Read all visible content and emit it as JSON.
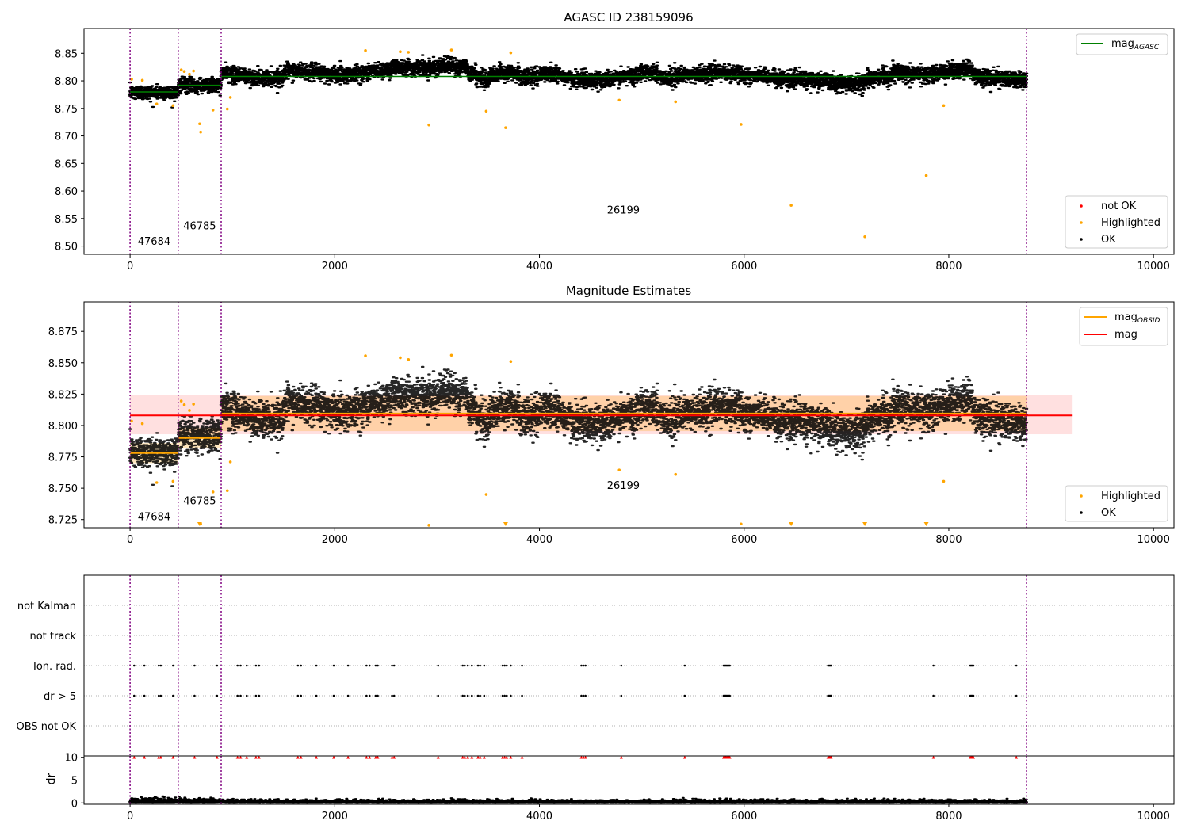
{
  "chart_data": [
    {
      "type": "scatter",
      "title": "AGASC ID 238159096",
      "xlim": [
        -450,
        10200
      ],
      "ylim": [
        8.485,
        8.895
      ],
      "x_ticks": [
        0,
        2000,
        4000,
        6000,
        8000,
        10000
      ],
      "y_ticks": [
        8.5,
        8.55,
        8.6,
        8.65,
        8.7,
        8.75,
        8.8,
        8.85
      ],
      "y_tick_labels": [
        "8.50",
        "8.55",
        "8.60",
        "8.65",
        "8.70",
        "8.75",
        "8.80",
        "8.85"
      ],
      "x_tick_labels": [
        "0",
        "2000",
        "4000",
        "6000",
        "8000",
        "10000"
      ],
      "obsid_boundaries": [
        0,
        470,
        890,
        8760
      ],
      "obsid_labels": [
        {
          "text": "47684",
          "x": 235,
          "y": 8.502
        },
        {
          "text": "46785",
          "x": 680,
          "y": 8.53
        },
        {
          "text": "26199",
          "x": 4820,
          "y": 8.559
        }
      ],
      "legend_top": [
        {
          "name": "mag_AGASC",
          "label": "mag",
          "sub": "AGASC",
          "color": "#008000"
        }
      ],
      "legend_bottom": [
        {
          "name": "not OK",
          "color": "#ff0000"
        },
        {
          "name": "Highlighted",
          "color": "#ffa500"
        },
        {
          "name": "OK",
          "color": "#000000"
        }
      ],
      "ok_level_segments": [
        {
          "x0": 0,
          "x1": 470,
          "y": 8.78
        },
        {
          "x0": 470,
          "x1": 890,
          "y": 8.792
        },
        {
          "x0": 890,
          "x1": 8760,
          "y": 8.808
        }
      ],
      "highlighted_points": [
        [
          15,
          8.803
        ],
        [
          120,
          8.801
        ],
        [
          260,
          8.758
        ],
        [
          420,
          8.755
        ],
        [
          500,
          8.82
        ],
        [
          530,
          8.817
        ],
        [
          580,
          8.812
        ],
        [
          620,
          8.818
        ],
        [
          680,
          8.722
        ],
        [
          690,
          8.707
        ],
        [
          810,
          8.747
        ],
        [
          950,
          8.749
        ],
        [
          980,
          8.77
        ],
        [
          2300,
          8.855
        ],
        [
          2640,
          8.853
        ],
        [
          2720,
          8.852
        ],
        [
          2920,
          8.72
        ],
        [
          3140,
          8.856
        ],
        [
          3480,
          8.745
        ],
        [
          3670,
          8.715
        ],
        [
          3720,
          8.851
        ],
        [
          4780,
          8.765
        ],
        [
          5330,
          8.762
        ],
        [
          5970,
          8.721
        ],
        [
          6460,
          8.574
        ],
        [
          7180,
          8.517
        ],
        [
          7780,
          8.628
        ],
        [
          7950,
          8.755
        ]
      ]
    },
    {
      "type": "scatter",
      "title": "Magnitude Estimates",
      "xlim": [
        -450,
        10200
      ],
      "ylim": [
        8.7185,
        8.8985
      ],
      "x_ticks": [
        0,
        2000,
        4000,
        6000,
        8000,
        10000
      ],
      "x_tick_labels": [
        "0",
        "2000",
        "4000",
        "6000",
        "8000",
        "10000"
      ],
      "y_ticks": [
        8.725,
        8.75,
        8.775,
        8.8,
        8.825,
        8.85,
        8.875
      ],
      "y_tick_labels": [
        "8.725",
        "8.750",
        "8.775",
        "8.800",
        "8.825",
        "8.850",
        "8.875"
      ],
      "obsid_boundaries": [
        0,
        470,
        890,
        8760
      ],
      "obsid_labels": [
        {
          "text": "47684",
          "x": 235,
          "y": 8.7245
        },
        {
          "text": "46785",
          "x": 680,
          "y": 8.737
        },
        {
          "text": "26199",
          "x": 4820,
          "y": 8.7495
        }
      ],
      "mag": 8.808,
      "mag_band": [
        8.793,
        8.824
      ],
      "mag_band_xrange": [
        0,
        9210
      ],
      "mag_obsid": [
        {
          "x0": 0,
          "x1": 470,
          "y": 8.778,
          "band": [
            8.77,
            8.786
          ]
        },
        {
          "x0": 470,
          "x1": 890,
          "y": 8.79,
          "band": [
            8.782,
            8.798
          ]
        },
        {
          "x0": 890,
          "x1": 8760,
          "y": 8.8095,
          "band": [
            8.7955,
            8.8235
          ]
        }
      ],
      "legend_top": [
        {
          "name": "mag_OBSID",
          "label": "mag",
          "sub": "OBSID",
          "color": "#ffa500"
        },
        {
          "name": "mag",
          "label": "mag",
          "sub": "",
          "color": "#ff0000"
        }
      ],
      "legend_bottom": [
        {
          "name": "Highlighted",
          "color": "#ffa500"
        },
        {
          "name": "OK",
          "color": "#000000"
        }
      ],
      "highlighted_points": [
        [
          15,
          8.8035
        ],
        [
          120,
          8.8015
        ],
        [
          260,
          8.7545
        ],
        [
          420,
          8.7555
        ],
        [
          500,
          8.8195
        ],
        [
          530,
          8.8165
        ],
        [
          580,
          8.812
        ],
        [
          620,
          8.817
        ],
        [
          690,
          8.7215
        ],
        [
          810,
          8.747
        ],
        [
          950,
          8.748
        ],
        [
          980,
          8.771
        ],
        [
          2300,
          8.8555
        ],
        [
          2640,
          8.854
        ],
        [
          2720,
          8.8525
        ],
        [
          2920,
          8.7205
        ],
        [
          3140,
          8.856
        ],
        [
          3480,
          8.745
        ],
        [
          3720,
          8.851
        ],
        [
          4780,
          8.7645
        ],
        [
          5330,
          8.761
        ],
        [
          5970,
          8.7215
        ],
        [
          7950,
          8.7555
        ]
      ],
      "off_scale_markers": [
        680,
        3670,
        6460,
        7180,
        7780
      ]
    },
    {
      "type": "scatter",
      "title": "",
      "xlim": [
        -450,
        10200
      ],
      "categories": [
        "not Kalman",
        "not track",
        "Ion. rad.",
        "dr > 5",
        "OBS not OK"
      ],
      "obsid_boundaries": [
        0,
        470,
        890,
        8760
      ],
      "flag_times": [
        40,
        140,
        280,
        300,
        420,
        630,
        850,
        1050,
        1080,
        1140,
        1230,
        1260,
        1640,
        1670,
        1820,
        1990,
        2130,
        2310,
        2340,
        2400,
        2420,
        2560,
        2580,
        3010,
        3250,
        3270,
        3300,
        3340,
        3400,
        3420,
        3460,
        3640,
        3660,
        3680,
        3720,
        3830,
        4410,
        4430,
        4450,
        4800,
        5420,
        5800,
        5810,
        5820,
        5830,
        5840,
        5850,
        5860,
        6820,
        6830,
        6840,
        6850,
        7850,
        8210,
        8220,
        8230,
        8240,
        8660
      ],
      "ion_rad_times": [
        40,
        140,
        280,
        300,
        420,
        630,
        850,
        1050,
        1080,
        1140,
        1230,
        1260,
        1640,
        1670,
        1820,
        1990,
        2130,
        2310,
        2340,
        2400,
        2420,
        2560,
        2580,
        3010,
        3250,
        3270,
        3300,
        3340,
        3400,
        3420,
        3460,
        3640,
        3660,
        3680,
        3720,
        3830,
        4410,
        4430,
        4450,
        4800,
        5420,
        5800,
        5810,
        5820,
        5830,
        5840,
        5850,
        5860,
        6820,
        6830,
        6840,
        6850,
        7850,
        8210,
        8220,
        8230,
        8240,
        8660
      ]
    },
    {
      "type": "scatter",
      "title": "",
      "xlim": [
        -450,
        10200
      ],
      "ylim": [
        -0.3,
        10.3
      ],
      "ylabel": "dr",
      "y_ticks": [
        0,
        5,
        10
      ],
      "y_tick_labels": [
        "0",
        "5",
        "10"
      ],
      "x_ticks": [
        0,
        2000,
        4000,
        6000,
        8000,
        10000
      ],
      "x_tick_labels": [
        "0",
        "2000",
        "4000",
        "6000",
        "8000",
        "10000"
      ],
      "obsid_boundaries": [
        0,
        470,
        890,
        8760
      ],
      "clipped_level": 10,
      "typical_dr": [
        0,
        1.5
      ]
    }
  ]
}
